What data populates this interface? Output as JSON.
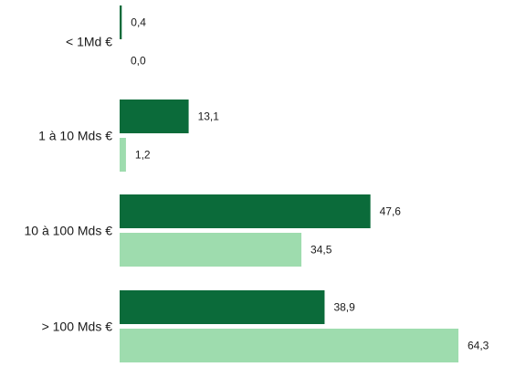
{
  "chart_data": {
    "type": "bar",
    "orientation": "horizontal",
    "categories": [
      "< 1Md €",
      "1 à 10 Mds €",
      "10 à 100 Mds €",
      "> 100 Mds €"
    ],
    "series": [
      {
        "color": "#0b6b3a",
        "values": [
          0.4,
          13.1,
          47.6,
          38.9
        ],
        "labels": [
          "0,4",
          "13,1",
          "47,6",
          "38,9"
        ]
      },
      {
        "color": "#9edcae",
        "values": [
          0.0,
          1.2,
          34.5,
          64.3
        ],
        "labels": [
          "0,0",
          "1,2",
          "34,5",
          "64,3"
        ]
      }
    ],
    "xlim": [
      0,
      64.3
    ],
    "grid": false,
    "legend": "none",
    "title": "",
    "xlabel": "",
    "ylabel": ""
  }
}
